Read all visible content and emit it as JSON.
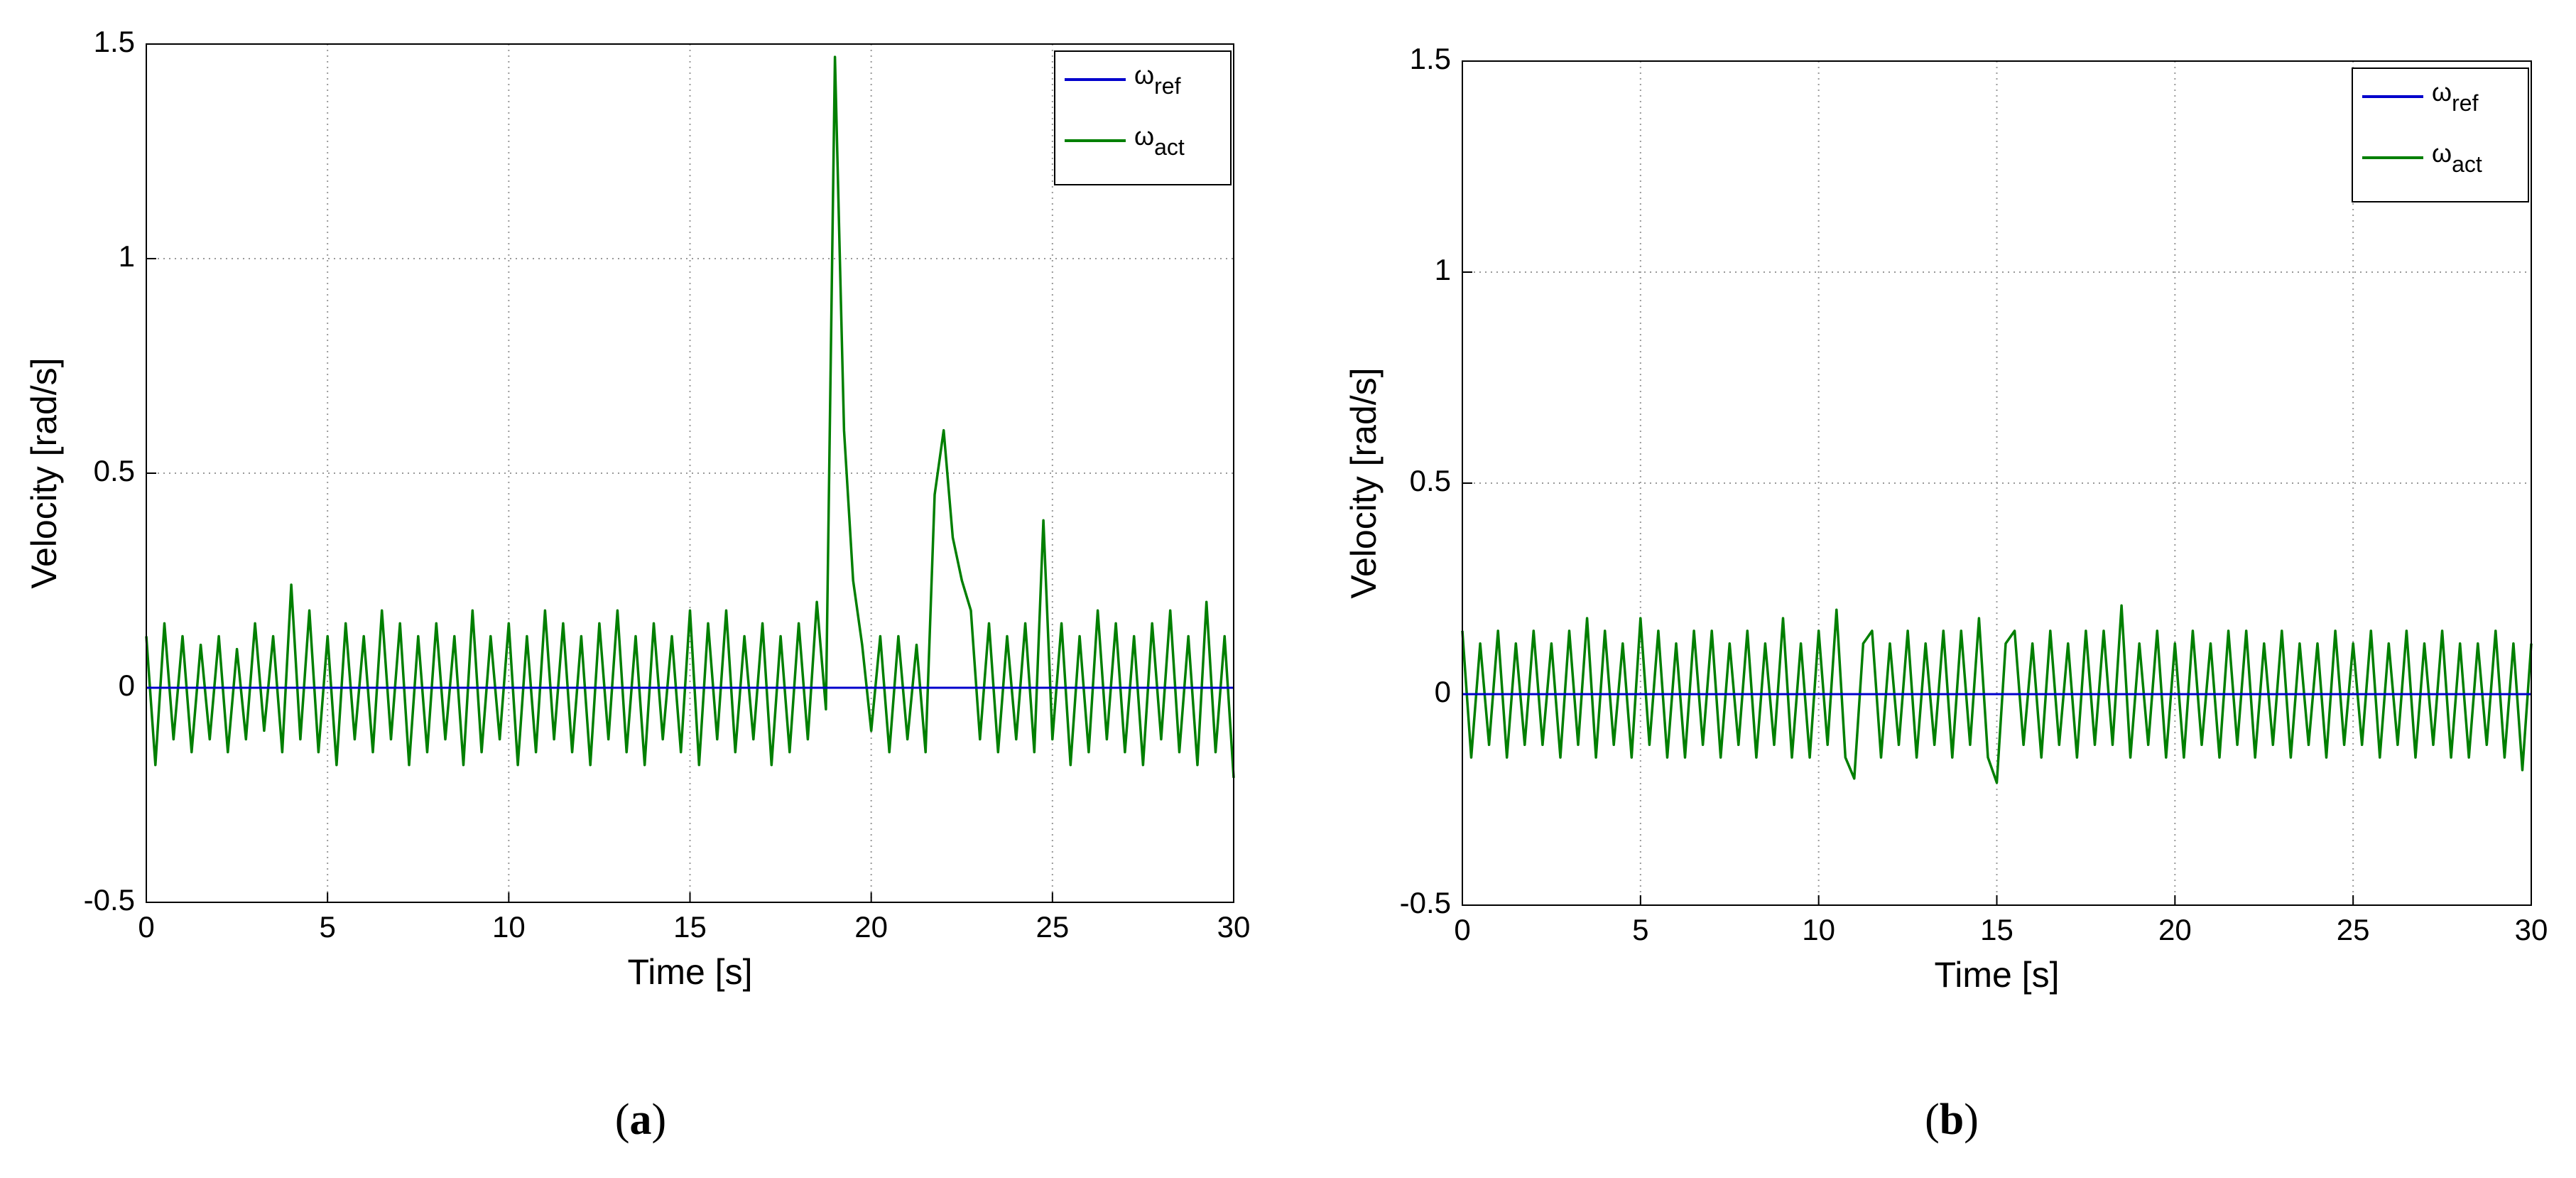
{
  "chart_data": [
    {
      "type": "line",
      "caption": "(a)",
      "xlabel": "Time [s]",
      "ylabel": "Velocity [rad/s]",
      "x": [
        0,
        0.25,
        0.5,
        0.75,
        1,
        1.25,
        1.5,
        1.75,
        2,
        2.25,
        2.5,
        2.75,
        3,
        3.25,
        3.5,
        3.75,
        4,
        4.25,
        4.5,
        4.75,
        5,
        5.25,
        5.5,
        5.75,
        6,
        6.25,
        6.5,
        6.75,
        7,
        7.25,
        7.5,
        7.75,
        8,
        8.25,
        8.5,
        8.75,
        9,
        9.25,
        9.5,
        9.75,
        10,
        10.25,
        10.5,
        10.75,
        11,
        11.25,
        11.5,
        11.75,
        12,
        12.25,
        12.5,
        12.75,
        13,
        13.25,
        13.5,
        13.75,
        14,
        14.25,
        14.5,
        14.75,
        15,
        15.25,
        15.5,
        15.75,
        16,
        16.25,
        16.5,
        16.75,
        17,
        17.25,
        17.5,
        17.75,
        18,
        18.25,
        18.5,
        18.75,
        19,
        19.25,
        19.5,
        19.75,
        20,
        20.25,
        20.5,
        20.75,
        21,
        21.25,
        21.5,
        21.75,
        22,
        22.25,
        22.5,
        22.75,
        23,
        23.25,
        23.5,
        23.75,
        24,
        24.25,
        24.5,
        24.75,
        25,
        25.25,
        25.5,
        25.75,
        26,
        26.25,
        26.5,
        26.75,
        27,
        27.25,
        27.5,
        27.75,
        28,
        28.25,
        28.5,
        28.75,
        29,
        29.25,
        29.5,
        29.75,
        30
      ],
      "series": [
        {
          "name": "ωref",
          "color": "#0000cc",
          "values": [
            0,
            0,
            0,
            0,
            0,
            0,
            0,
            0,
            0,
            0,
            0,
            0,
            0,
            0,
            0,
            0,
            0,
            0,
            0,
            0,
            0,
            0,
            0,
            0,
            0,
            0,
            0,
            0,
            0,
            0,
            0,
            0,
            0,
            0,
            0,
            0,
            0,
            0,
            0,
            0,
            0,
            0,
            0,
            0,
            0,
            0,
            0,
            0,
            0,
            0,
            0,
            0,
            0,
            0,
            0,
            0,
            0,
            0,
            0,
            0,
            0,
            0,
            0,
            0,
            0,
            0,
            0,
            0,
            0,
            0,
            0,
            0,
            0,
            0,
            0,
            0,
            0,
            0,
            0,
            0,
            0,
            0,
            0,
            0,
            0,
            0,
            0,
            0,
            0,
            0,
            0,
            0,
            0,
            0,
            0,
            0,
            0,
            0,
            0,
            0,
            0,
            0,
            0,
            0,
            0,
            0,
            0,
            0,
            0,
            0,
            0,
            0,
            0,
            0,
            0,
            0,
            0,
            0,
            0,
            0,
            0
          ]
        },
        {
          "name": "ωact",
          "color": "#007f00",
          "values": [
            0.12,
            -0.18,
            0.15,
            -0.12,
            0.12,
            -0.15,
            0.1,
            -0.12,
            0.12,
            -0.15,
            0.09,
            -0.12,
            0.15,
            -0.1,
            0.12,
            -0.15,
            0.24,
            -0.12,
            0.18,
            -0.15,
            0.12,
            -0.18,
            0.15,
            -0.12,
            0.12,
            -0.15,
            0.18,
            -0.12,
            0.15,
            -0.18,
            0.12,
            -0.15,
            0.15,
            -0.12,
            0.12,
            -0.18,
            0.18,
            -0.15,
            0.12,
            -0.12,
            0.15,
            -0.18,
            0.12,
            -0.15,
            0.18,
            -0.12,
            0.15,
            -0.15,
            0.12,
            -0.18,
            0.15,
            -0.12,
            0.18,
            -0.15,
            0.12,
            -0.18,
            0.15,
            -0.12,
            0.12,
            -0.15,
            0.18,
            -0.18,
            0.15,
            -0.12,
            0.18,
            -0.15,
            0.12,
            -0.12,
            0.15,
            -0.18,
            0.12,
            -0.15,
            0.15,
            -0.12,
            0.2,
            -0.05,
            1.47,
            0.6,
            0.25,
            0.1,
            -0.1,
            0.12,
            -0.15,
            0.12,
            -0.12,
            0.1,
            -0.15,
            0.45,
            0.6,
            0.35,
            0.25,
            0.18,
            -0.12,
            0.15,
            -0.15,
            0.12,
            -0.12,
            0.15,
            -0.15,
            0.39,
            -0.12,
            0.15,
            -0.18,
            0.12,
            -0.15,
            0.18,
            -0.12,
            0.15,
            -0.15,
            0.12,
            -0.18,
            0.15,
            -0.12,
            0.18,
            -0.15,
            0.12,
            -0.18,
            0.2,
            -0.15,
            0.12,
            -0.21
          ]
        }
      ],
      "xlim": [
        0,
        30
      ],
      "ylim": [
        -0.5,
        1.5
      ],
      "xticks": [
        0,
        5,
        10,
        15,
        20,
        25,
        30
      ],
      "yticks": [
        -0.5,
        0,
        0.5,
        1,
        1.5
      ],
      "grid": true,
      "legend": "upper right"
    },
    {
      "type": "line",
      "caption": "(b)",
      "xlabel": "Time [s]",
      "ylabel": "Velocity [rad/s]",
      "x": [
        0,
        0.25,
        0.5,
        0.75,
        1,
        1.25,
        1.5,
        1.75,
        2,
        2.25,
        2.5,
        2.75,
        3,
        3.25,
        3.5,
        3.75,
        4,
        4.25,
        4.5,
        4.75,
        5,
        5.25,
        5.5,
        5.75,
        6,
        6.25,
        6.5,
        6.75,
        7,
        7.25,
        7.5,
        7.75,
        8,
        8.25,
        8.5,
        8.75,
        9,
        9.25,
        9.5,
        9.75,
        10,
        10.25,
        10.5,
        10.75,
        11,
        11.25,
        11.5,
        11.75,
        12,
        12.25,
        12.5,
        12.75,
        13,
        13.25,
        13.5,
        13.75,
        14,
        14.25,
        14.5,
        14.75,
        15,
        15.25,
        15.5,
        15.75,
        16,
        16.25,
        16.5,
        16.75,
        17,
        17.25,
        17.5,
        17.75,
        18,
        18.25,
        18.5,
        18.75,
        19,
        19.25,
        19.5,
        19.75,
        20,
        20.25,
        20.5,
        20.75,
        21,
        21.25,
        21.5,
        21.75,
        22,
        22.25,
        22.5,
        22.75,
        23,
        23.25,
        23.5,
        23.75,
        24,
        24.25,
        24.5,
        24.75,
        25,
        25.25,
        25.5,
        25.75,
        26,
        26.25,
        26.5,
        26.75,
        27,
        27.25,
        27.5,
        27.75,
        28,
        28.25,
        28.5,
        28.75,
        29,
        29.25,
        29.5,
        29.75,
        30
      ],
      "series": [
        {
          "name": "ωref",
          "color": "#0000cc",
          "values": [
            0,
            0,
            0,
            0,
            0,
            0,
            0,
            0,
            0,
            0,
            0,
            0,
            0,
            0,
            0,
            0,
            0,
            0,
            0,
            0,
            0,
            0,
            0,
            0,
            0,
            0,
            0,
            0,
            0,
            0,
            0,
            0,
            0,
            0,
            0,
            0,
            0,
            0,
            0,
            0,
            0,
            0,
            0,
            0,
            0,
            0,
            0,
            0,
            0,
            0,
            0,
            0,
            0,
            0,
            0,
            0,
            0,
            0,
            0,
            0,
            0,
            0,
            0,
            0,
            0,
            0,
            0,
            0,
            0,
            0,
            0,
            0,
            0,
            0,
            0,
            0,
            0,
            0,
            0,
            0,
            0,
            0,
            0,
            0,
            0,
            0,
            0,
            0,
            0,
            0,
            0,
            0,
            0,
            0,
            0,
            0,
            0,
            0,
            0,
            0,
            0,
            0,
            0,
            0,
            0,
            0,
            0,
            0,
            0,
            0,
            0,
            0,
            0,
            0,
            0,
            0,
            0,
            0,
            0,
            0,
            0
          ]
        },
        {
          "name": "ωact",
          "color": "#007f00",
          "values": [
            0.15,
            -0.15,
            0.12,
            -0.12,
            0.15,
            -0.15,
            0.12,
            -0.12,
            0.15,
            -0.12,
            0.12,
            -0.15,
            0.15,
            -0.12,
            0.18,
            -0.15,
            0.15,
            -0.12,
            0.12,
            -0.15,
            0.18,
            -0.12,
            0.15,
            -0.15,
            0.12,
            -0.15,
            0.15,
            -0.12,
            0.15,
            -0.15,
            0.12,
            -0.12,
            0.15,
            -0.15,
            0.12,
            -0.12,
            0.18,
            -0.15,
            0.12,
            -0.15,
            0.15,
            -0.12,
            0.2,
            -0.15,
            -0.2,
            0.12,
            0.15,
            -0.15,
            0.12,
            -0.12,
            0.15,
            -0.15,
            0.12,
            -0.12,
            0.15,
            -0.15,
            0.15,
            -0.12,
            0.18,
            -0.15,
            -0.21,
            0.12,
            0.15,
            -0.12,
            0.12,
            -0.15,
            0.15,
            -0.12,
            0.12,
            -0.15,
            0.15,
            -0.12,
            0.15,
            -0.12,
            0.21,
            -0.15,
            0.12,
            -0.12,
            0.15,
            -0.15,
            0.12,
            -0.15,
            0.15,
            -0.12,
            0.12,
            -0.15,
            0.15,
            -0.12,
            0.15,
            -0.15,
            0.12,
            -0.12,
            0.15,
            -0.15,
            0.12,
            -0.12,
            0.12,
            -0.15,
            0.15,
            -0.12,
            0.12,
            -0.12,
            0.15,
            -0.15,
            0.12,
            -0.12,
            0.15,
            -0.15,
            0.12,
            -0.12,
            0.15,
            -0.15,
            0.12,
            -0.15,
            0.12,
            -0.12,
            0.15,
            -0.15,
            0.12,
            -0.18,
            0.12
          ]
        }
      ],
      "xlim": [
        0,
        30
      ],
      "ylim": [
        -0.5,
        1.5
      ],
      "xticks": [
        0,
        5,
        10,
        15,
        20,
        25,
        30
      ],
      "yticks": [
        -0.5,
        0,
        0.5,
        1,
        1.5
      ],
      "grid": true,
      "legend": "upper right"
    }
  ]
}
